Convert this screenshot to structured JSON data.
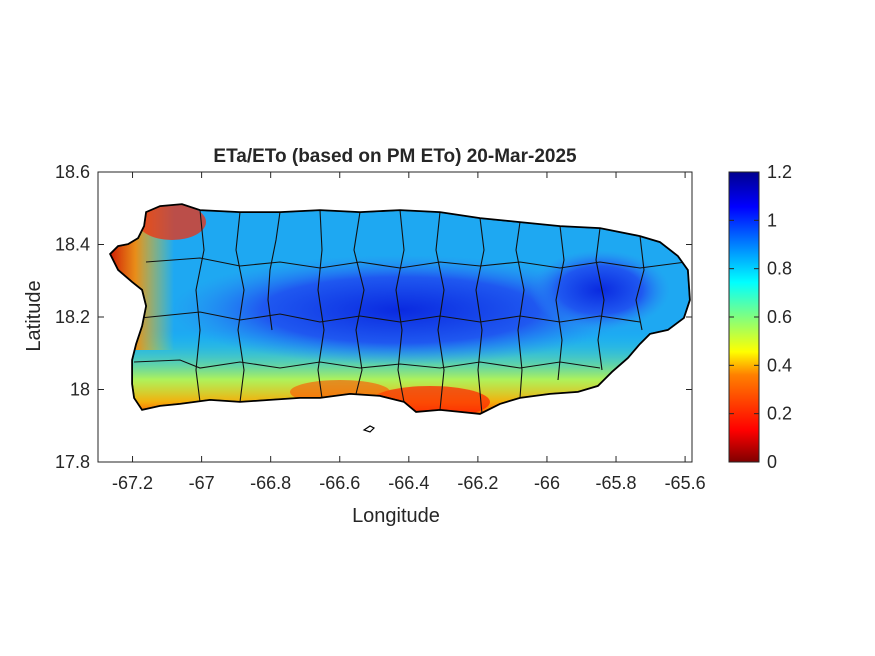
{
  "title": "ETa/ETo (based on PM ETo) 20-Mar-2025",
  "xaxis": {
    "label": "Longitude",
    "range": [
      -67.3,
      -65.58
    ],
    "ticks": [
      -67.2,
      -67,
      -66.8,
      -66.6,
      -66.4,
      -66.2,
      -66,
      -65.8,
      -65.6
    ],
    "tick_labels": [
      "-67.2",
      "-67",
      "-66.8",
      "-66.6",
      "-66.4",
      "-66.2",
      "-66",
      "-65.8",
      "-65.6"
    ]
  },
  "yaxis": {
    "label": "Latitude",
    "range": [
      17.8,
      18.6
    ],
    "ticks": [
      17.8,
      18,
      18.2,
      18.4,
      18.6
    ],
    "tick_labels": [
      "17.8",
      "18",
      "18.2",
      "18.4",
      "18.6"
    ]
  },
  "colorbar": {
    "range": [
      0,
      1.2
    ],
    "ticks": [
      0,
      0.2,
      0.4,
      0.6,
      0.8,
      1,
      1.2
    ],
    "tick_labels": [
      "0",
      "0.2",
      "0.4",
      "0.6",
      "0.8",
      "1",
      "1.2"
    ],
    "colormap": "jet"
  },
  "colors": {
    "jet_stops": [
      "#800000",
      "#ff0000",
      "#ff8000",
      "#ffff00",
      "#80ff80",
      "#00ffff",
      "#0080ff",
      "#0000ff",
      "#00008f"
    ]
  },
  "map_description": "Puerto Rico municipalities outline; high ratio (blue) across central mountains, low ratio (red/orange) along west and south coasts."
}
